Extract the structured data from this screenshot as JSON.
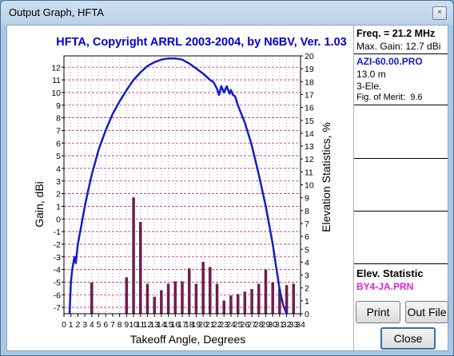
{
  "window": {
    "title": "Output Graph, HFTA",
    "close_glyph": "×"
  },
  "graph": {
    "title": "HFTA, Copyright ARRL 2003-2004, by N6BV, Ver. 1.03",
    "xlabel": "Takeoff Angle, Degrees",
    "ylabel_left": "Gain, dBi",
    "ylabel_right": "Elevation Statistics, %"
  },
  "panel": {
    "freq": "Freq. = 21.2 MHz",
    "max_gain": "Max. Gain: 12.7 dBi",
    "file": "AZI-60.00.PRO",
    "height": "13.0 m",
    "elements": "3-Ele.",
    "merit_label": "Fig. of Merit:",
    "merit_value": "9.6",
    "elev_label": "Elev. Statistic",
    "elev_file": "BY4-JA.PRN"
  },
  "buttons": {
    "print": "Print",
    "outfile": "Out File",
    "close": "Close"
  },
  "colors": {
    "curve": "#1020c8",
    "bars": "#7a1a50",
    "grid": "#c03070",
    "title": "#0000cc",
    "stat_file": "#e020d0"
  },
  "chart_data": {
    "type": "line",
    "title": "HFTA, Copyright ARRL 2003-2004, by N6BV, Ver. 1.03",
    "xlabel": "Takeoff Angle, Degrees",
    "ylabel": "Gain, dBi",
    "y2label": "Elevation Statistics, %",
    "xlim": [
      0,
      34
    ],
    "ylim": [
      -7.5,
      12.9
    ],
    "y2lim": [
      0,
      20
    ],
    "xticks": [
      0,
      1,
      2,
      3,
      4,
      5,
      6,
      7,
      8,
      9,
      10,
      11,
      12,
      13,
      14,
      15,
      16,
      17,
      18,
      19,
      20,
      21,
      22,
      23,
      24,
      25,
      26,
      27,
      28,
      29,
      30,
      31,
      32,
      33,
      34
    ],
    "yticks": [
      -7,
      -6,
      -5,
      -4,
      -3,
      -2,
      -1,
      0,
      1,
      2,
      3,
      4,
      5,
      6,
      7,
      8,
      9,
      10,
      11,
      12
    ],
    "y2ticks": [
      0,
      1,
      2,
      3,
      4,
      5,
      6,
      7,
      8,
      9,
      10,
      11,
      12,
      13,
      14,
      15,
      16,
      17,
      18,
      19,
      20
    ],
    "grid": true,
    "series": [
      {
        "type": "line",
        "x": [
          0.8,
          1.0,
          1.2,
          1.5,
          1.7,
          2.0,
          2.5,
          3.0,
          3.5,
          4.0,
          5.0,
          6.0,
          7.0,
          8.0,
          9.0,
          10.0,
          11.0,
          12.0,
          13.0,
          14.0,
          15.0,
          16.0,
          17.0,
          18.0,
          19.0,
          20.0,
          21.0,
          21.5,
          22.0,
          22.3,
          22.6,
          23.0,
          23.4,
          23.8,
          24.0,
          24.3,
          24.6,
          25.0,
          26.0,
          27.0,
          28.0,
          29.0,
          30.0,
          30.5,
          31.0,
          31.5,
          32.0
        ],
        "y": [
          -7.5,
          -5.0,
          -4.0,
          -3.0,
          -3.5,
          -2.0,
          -0.5,
          1.0,
          2.3,
          3.5,
          5.5,
          7.0,
          8.3,
          9.3,
          10.2,
          11.0,
          11.6,
          12.1,
          12.4,
          12.6,
          12.7,
          12.7,
          12.6,
          12.3,
          11.9,
          11.5,
          11.0,
          10.8,
          10.3,
          9.8,
          10.5,
          10.0,
          10.5,
          9.9,
          10.2,
          9.8,
          9.7,
          9.0,
          7.6,
          5.8,
          3.5,
          1.0,
          -2.0,
          -3.8,
          -5.6,
          -6.8,
          -7.5
        ]
      },
      {
        "type": "bar",
        "x": [
          4,
          9,
          10,
          11,
          12,
          13,
          14,
          15,
          16,
          17,
          18,
          19,
          20,
          21,
          22,
          23,
          24,
          25,
          26,
          27,
          28,
          29,
          30,
          31,
          32,
          33
        ],
        "y2": [
          2.4,
          2.8,
          9,
          7.1,
          2.3,
          1.3,
          1.8,
          2.3,
          2.5,
          2.5,
          3.5,
          2.3,
          4,
          3.6,
          2.3,
          1,
          1.4,
          1.5,
          1.7,
          1.9,
          2.3,
          3.4,
          2.4,
          1.9,
          2.2,
          2.3
        ]
      }
    ]
  }
}
